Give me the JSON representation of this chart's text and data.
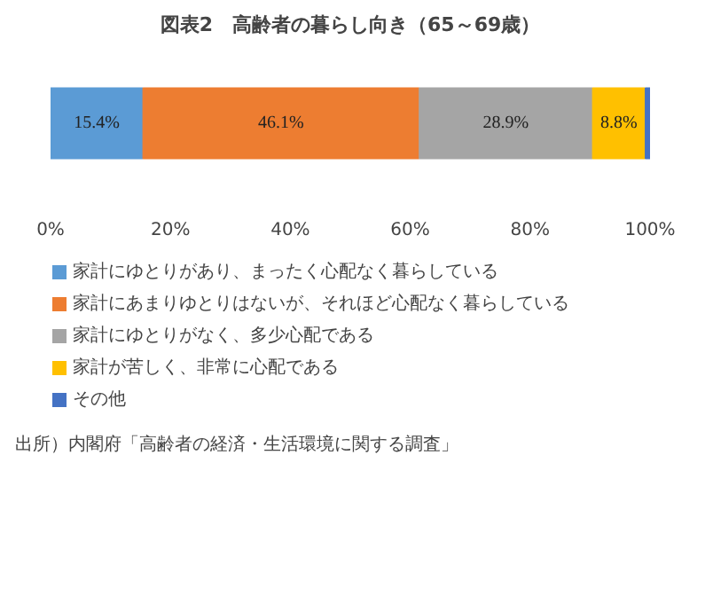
{
  "chart_data": {
    "type": "bar",
    "title": "図表2　高齢者の暮らし向き（65～69歳）",
    "orientation": "horizontal",
    "stacked": true,
    "categories": [
      null
    ],
    "series": [
      {
        "name": "家計にゆとりがあり、まったく心配なく暮らしている",
        "color": "#5b9bd5",
        "values": [
          15.4
        ],
        "value_labels": [
          "15.4%"
        ]
      },
      {
        "name": "家計にあまりゆとりはないが、それほど心配なく暮らしている",
        "color": "#ed7d31",
        "values": [
          46.1
        ],
        "value_labels": [
          "46.1%"
        ]
      },
      {
        "name": "家計にゆとりがなく、多少心配である",
        "color": "#a5a5a5",
        "values": [
          28.9
        ],
        "value_labels": [
          "28.9%"
        ]
      },
      {
        "name": "家計が苦しく、非常に心配である",
        "color": "#ffc000",
        "values": [
          8.8
        ],
        "value_labels": [
          "8.8%"
        ]
      },
      {
        "name": "その他",
        "color": "#4472c4",
        "values": [
          0.8
        ],
        "value_labels": [
          null
        ]
      }
    ],
    "xlim": [
      0,
      100
    ],
    "xticks": [
      {
        "value": 0,
        "label": "0%"
      },
      {
        "value": 20,
        "label": "20%"
      },
      {
        "value": 40,
        "label": "40%"
      },
      {
        "value": 60,
        "label": "60%"
      },
      {
        "value": 80,
        "label": "80%"
      },
      {
        "value": 100,
        "label": "100%"
      }
    ],
    "tick_labels": "x",
    "grid": false,
    "legend": "bottom",
    "annotations": [
      "出所）内閣府「高齢者の経済・生活環境に関する調査」"
    ]
  }
}
